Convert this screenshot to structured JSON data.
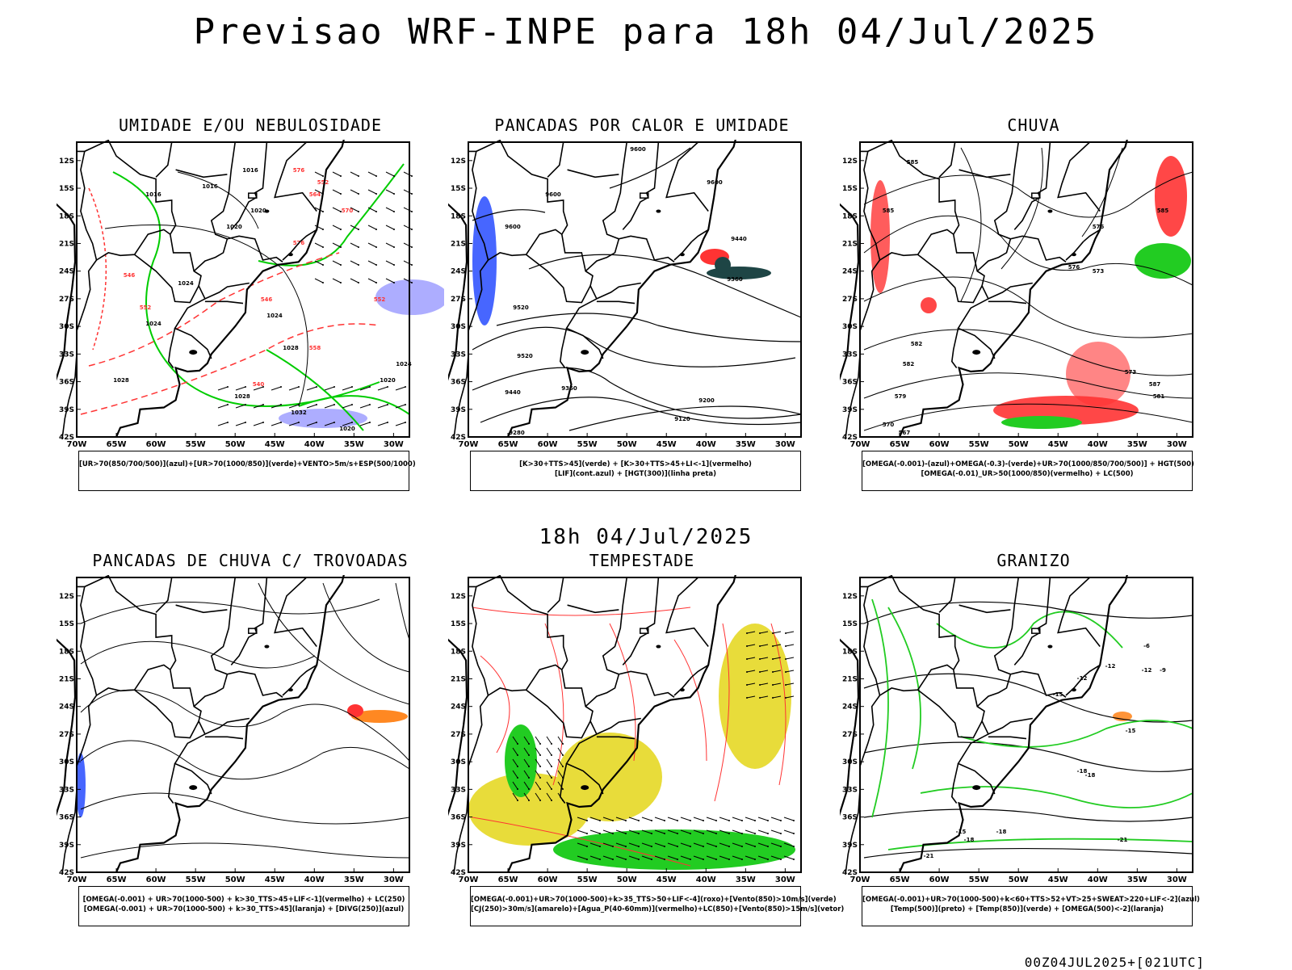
{
  "header": {
    "title": "Previsao WRF-INPE  para 18h 04/Jul/2025",
    "subtitle": "18h 04/Jul/2025",
    "footer": "00Z04JUL2025+[021UTC]"
  },
  "axes": {
    "lat_labels": [
      "12S",
      "15S",
      "18S",
      "21S",
      "24S",
      "27S",
      "30S",
      "33S",
      "36S",
      "39S",
      "42S"
    ],
    "lon_labels": [
      "70W",
      "65W",
      "60W",
      "55W",
      "50W",
      "45W",
      "40W",
      "35W",
      "30W"
    ],
    "lat_values": [
      -12,
      -15,
      -18,
      -21,
      -24,
      -27,
      -30,
      -33,
      -36,
      -39,
      -42
    ],
    "lon_values": [
      -70,
      -65,
      -60,
      -55,
      -50,
      -45,
      -40,
      -35,
      -30
    ],
    "lon_range": [
      -70,
      -28
    ],
    "lat_range": [
      -10,
      -42
    ]
  },
  "colors": {
    "blue": "#3355ff",
    "green": "#22cc22",
    "red": "#ff3333",
    "orange": "#ff8822",
    "yellow": "#e8dc3a",
    "purple": "#9999ff",
    "darkgreen": "#1e4545",
    "black": "#000000"
  },
  "panels": [
    {
      "title": "UMIDADE E/OU NEBULOSIDADE",
      "legend": [
        "[UR>70(850/700/500)](azul)+[UR>70(1000/850)](verde)+VENTO>5m/s+ESP(500/1000)"
      ],
      "contour_labels": [
        "1016",
        "1016",
        "1016",
        "1020",
        "1020",
        "1024",
        "1024",
        "1028",
        "1028",
        "1032",
        "1020",
        "1024",
        "1020",
        "1024",
        "1028",
        "552",
        "564",
        "570",
        "576",
        "546",
        "552",
        "558",
        "540",
        "546",
        "552",
        "576"
      ]
    },
    {
      "title": "PANCADAS POR CALOR E UMIDADE",
      "legend": [
        "[K>30+TTS>45](verde) + [K>30+TTS>45+LI<-1](vermelho)",
        "[LIF](cont.azul) + [HGT(300)](linha preta)"
      ],
      "contour_labels": [
        "9600",
        "9600",
        "9600",
        "9600",
        "9520",
        "9440",
        "9440",
        "9360",
        "9360",
        "9280",
        "9200",
        "9120",
        "9520"
      ]
    },
    {
      "title": "CHUVA",
      "legend": [
        "[OMEGA(-0.001)-(azul)+OMEGA(-0.3)-(verde)+UR>70(1000/850/700/500)] + HGT(500)",
        "[OMEGA(-0.01)_UR>50(1000/850)(vermelho) + LC(500)"
      ],
      "contour_labels": [
        "585",
        "585",
        "582",
        "582",
        "579",
        "576",
        "573",
        "576",
        "573",
        "587",
        "581",
        "570",
        "567",
        "585"
      ]
    },
    {
      "title": "PANCADAS DE CHUVA C/ TROVOADAS",
      "legend": [
        "[OMEGA(-0.001) + UR>70(1000-500) + k>30_TTS>45+LIF<-1](vermelho) + LC(250)",
        "[OMEGA(-0.001) + UR>70(1000-500) + k>30_TTS>45](laranja) + [DIVG(250)](azul)"
      ],
      "contour_labels": []
    },
    {
      "title": "TEMPESTADE",
      "legend": [
        "[OMEGA(-0.001)+UR>70(1000-500)+k>35_TTS>50+LIF<-4](roxo)+[Vento(850)>10m/s](verde)",
        "[CJ(250)>30m/s](amarelo)+[Agua_P(40-60mm)](vermelho)+LC(850)+[Vento(850)>15m/s](vetor)"
      ],
      "contour_labels": []
    },
    {
      "title": "GRANIZO",
      "legend": [
        "[OMEGA(-0.001)+UR>70(1000-500)+k<60+TTS>52+VT>25+SWEAT>220+LIF<-2](azul)",
        "[Temp(500)](preto) + [Temp(850)](verde) + [OMEGA(500)<-2](laranja)"
      ],
      "contour_labels": [
        "-6",
        "-9",
        "-12",
        "-15",
        "-18",
        "-21",
        "-12",
        "-15",
        "-18",
        "-21",
        "-15",
        "-18",
        "-12",
        "-18"
      ]
    }
  ]
}
